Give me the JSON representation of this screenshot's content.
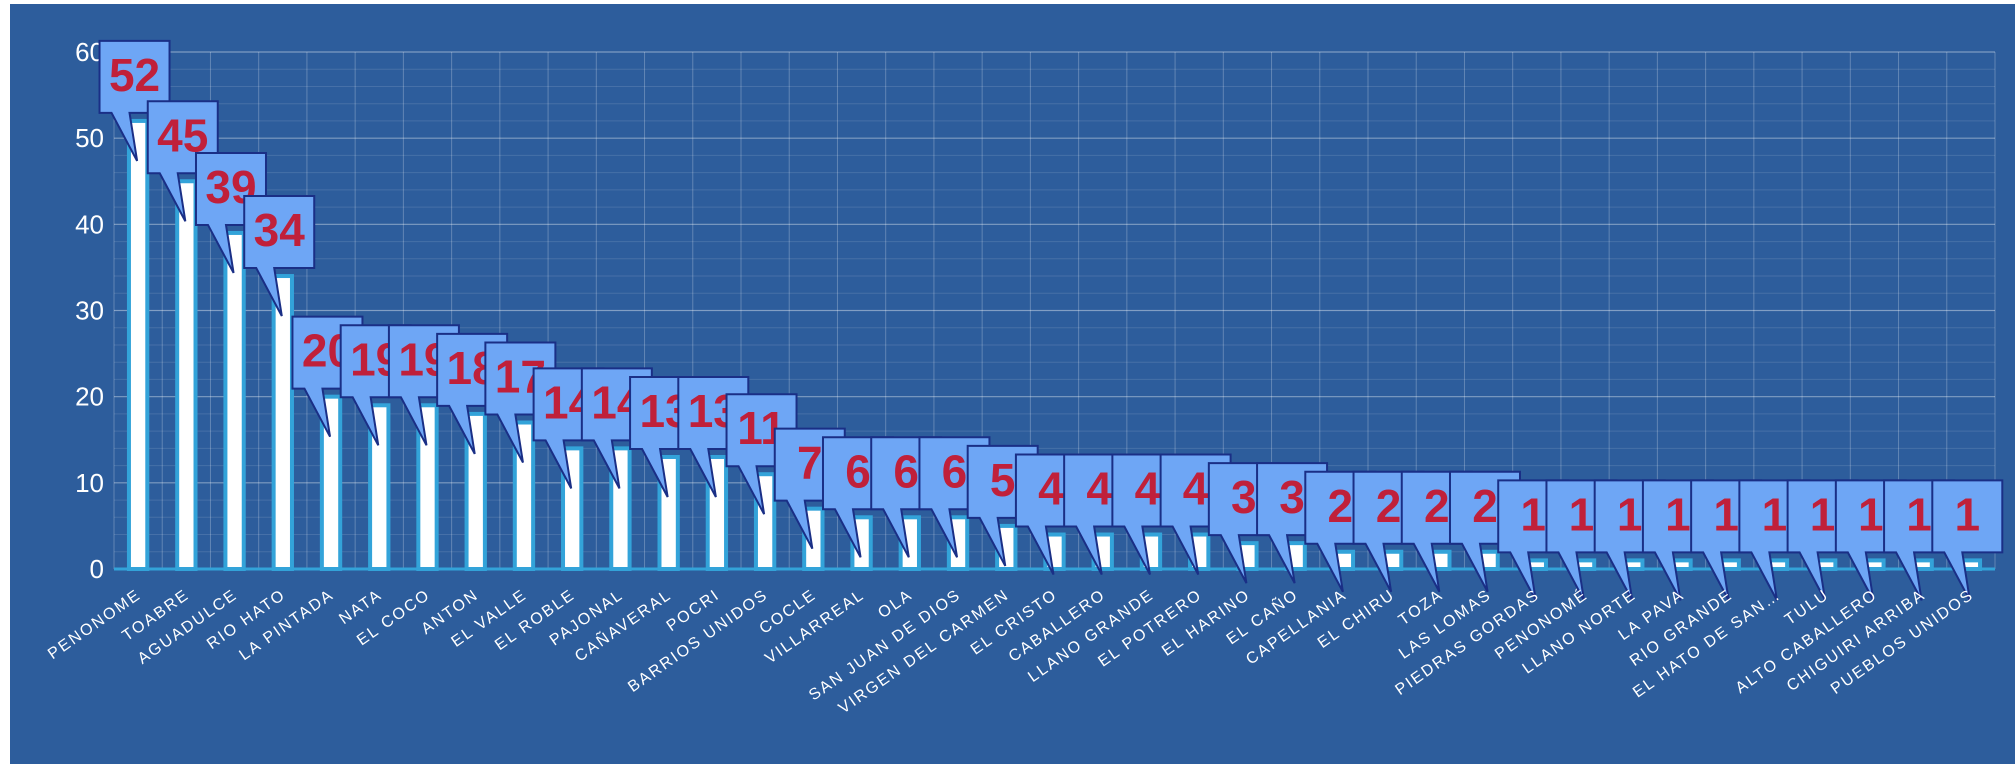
{
  "chart_data": {
    "type": "bar",
    "title": "",
    "xlabel": "",
    "ylabel": "",
    "ylim": [
      0,
      60
    ],
    "yticks": [
      0,
      10,
      20,
      30,
      40,
      50,
      60
    ],
    "grid": true,
    "categories": [
      "PENONOME",
      "TOABRE",
      "AGUADULCE",
      "RIO HATO",
      "LA PINTADA",
      "NATA",
      "EL COCO",
      "ANTON",
      "EL VALLE",
      "EL ROBLE",
      "PAJONAL",
      "CAÑAVERAL",
      "POCRI",
      "BARRIOS UNIDOS",
      "COCLE",
      "VILLARREAL",
      "OLA",
      "SAN JUAN DE DIOS",
      "VIRGEN DEL CARMEN",
      "EL CRISTO",
      "CABALLERO",
      "LLANO GRANDE",
      "EL POTRERO",
      "EL HARINO",
      "EL CAÑO",
      "CAPELLANIA",
      "EL CHIRU",
      "TOZA",
      "LAS LOMAS",
      "PIEDRAS GORDAS",
      "PENONOMÉ",
      "LLANO NORTE",
      "LA PAVA",
      "RIO GRANDE",
      "EL HATO DE SAN…",
      "TULU",
      "ALTO CABALLERO",
      "CHIGUIRI ARRIBA",
      "PUEBLOS UNIDOS"
    ],
    "values": [
      52,
      45,
      39,
      34,
      20,
      19,
      19,
      18,
      17,
      14,
      14,
      13,
      13,
      11,
      7,
      6,
      6,
      6,
      5,
      4,
      4,
      4,
      4,
      3,
      3,
      2,
      2,
      2,
      2,
      1,
      1,
      1,
      1,
      1,
      1,
      1,
      1,
      1,
      1
    ],
    "colors": {
      "background": "#2d5d9c",
      "bar_fill": "#ffffff",
      "bar_border": "#33a3d9",
      "callout_fill": "#6ea6f5",
      "callout_border": "#1a2f86",
      "data_label": "#c0203a",
      "text": "#ffffff"
    }
  }
}
